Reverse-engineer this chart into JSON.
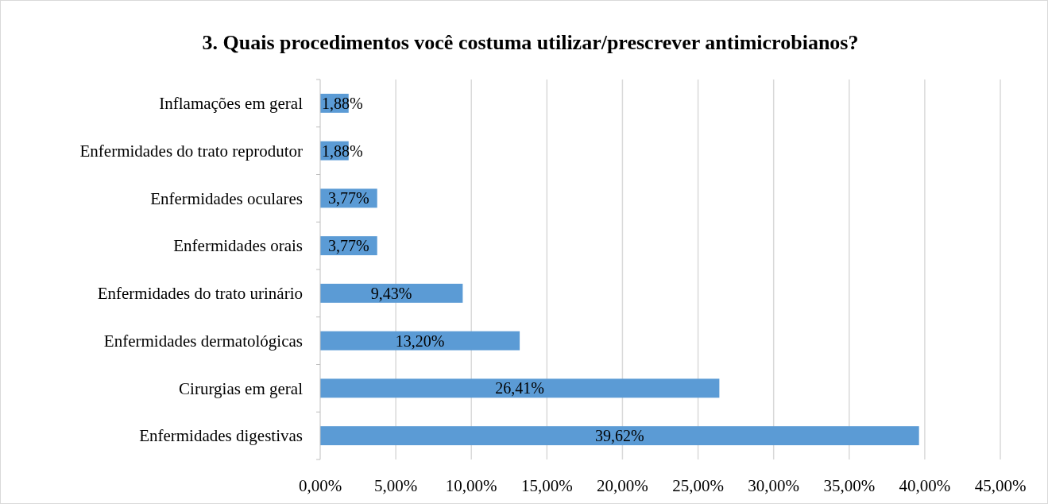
{
  "chart_data": {
    "type": "bar",
    "orientation": "horizontal",
    "title": "3. Quais procedimentos você costuma utilizar/prescrever antimicrobianos?",
    "categories": [
      "Inflamações em geral",
      "Enfermidades do trato reprodutor",
      "Enfermidades oculares",
      "Enfermidades orais",
      "Enfermidades do trato urinário",
      "Enfermidades dermatológicas",
      "Cirurgias em geral",
      "Enfermidades digestivas"
    ],
    "values": [
      1.88,
      1.88,
      3.77,
      3.77,
      9.43,
      13.2,
      26.41,
      39.62
    ],
    "value_labels": [
      "1,88%",
      "1,88%",
      "3,77%",
      "3,77%",
      "9,43%",
      "13,20%",
      "26,41%",
      "39,62%"
    ],
    "color": "#5b9bd5",
    "xlim": [
      0,
      45
    ],
    "xticks": [
      {
        "value": 0,
        "label": "0,00%"
      },
      {
        "value": 5,
        "label": "5,00%"
      },
      {
        "value": 10,
        "label": "10,00%"
      },
      {
        "value": 15,
        "label": "15,00%"
      },
      {
        "value": 20,
        "label": "20,00%"
      },
      {
        "value": 25,
        "label": "25,00%"
      },
      {
        "value": 30,
        "label": "30,00%"
      },
      {
        "value": 35,
        "label": "35,00%"
      },
      {
        "value": 40,
        "label": "40,00%"
      },
      {
        "value": 45,
        "label": "45,00%"
      }
    ],
    "grid": "x"
  }
}
